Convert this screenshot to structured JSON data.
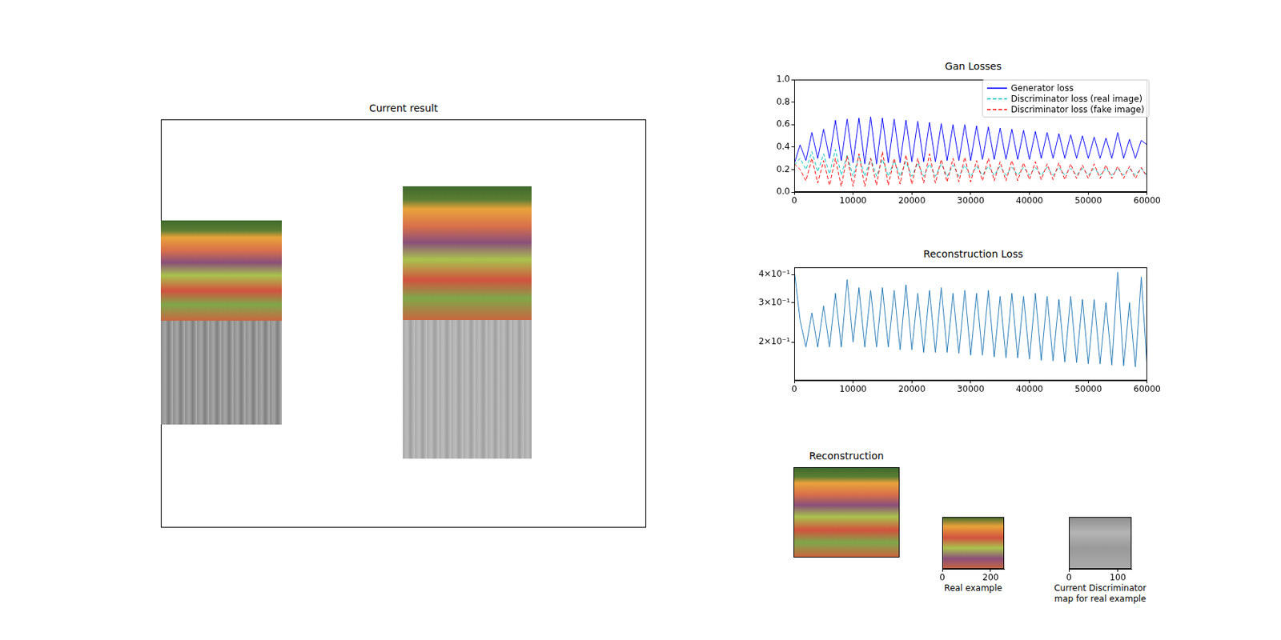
{
  "chart_data": [
    {
      "type": "image",
      "title": "Current result"
    },
    {
      "type": "line",
      "title": "Gan Losses",
      "grid": false,
      "legend": "upper right",
      "x": [
        0,
        1000,
        2000,
        3000,
        4000,
        5000,
        6000,
        7000,
        8000,
        9000,
        10000,
        11000,
        12000,
        13000,
        14000,
        15000,
        16000,
        17000,
        18000,
        19000,
        20000,
        21000,
        22000,
        23000,
        24000,
        25000,
        26000,
        27000,
        28000,
        29000,
        30000,
        31000,
        32000,
        33000,
        34000,
        35000,
        36000,
        37000,
        38000,
        39000,
        40000,
        41000,
        42000,
        43000,
        44000,
        45000,
        46000,
        47000,
        48000,
        49000,
        50000,
        51000,
        52000,
        53000,
        54000,
        55000,
        56000,
        57000,
        58000,
        59000,
        60000
      ],
      "xlim": [
        0,
        60000
      ],
      "xticks": [
        0,
        10000,
        20000,
        30000,
        40000,
        50000,
        60000
      ],
      "ylim": [
        0,
        1
      ],
      "yticks": [
        {
          "value": 0,
          "label": "0.0"
        },
        0.2,
        0.4,
        0.6,
        0.8,
        {
          "value": 1,
          "label": "1.0"
        }
      ],
      "series": [
        {
          "name": "Generator loss",
          "color": "#0000ff",
          "line_style": "solid",
          "values": [
            0.25,
            0.42,
            0.28,
            0.53,
            0.3,
            0.56,
            0.3,
            0.64,
            0.28,
            0.65,
            0.26,
            0.66,
            0.25,
            0.67,
            0.25,
            0.66,
            0.26,
            0.65,
            0.26,
            0.64,
            0.27,
            0.63,
            0.27,
            0.62,
            0.27,
            0.61,
            0.28,
            0.6,
            0.28,
            0.6,
            0.28,
            0.59,
            0.29,
            0.58,
            0.29,
            0.57,
            0.29,
            0.56,
            0.29,
            0.55,
            0.29,
            0.54,
            0.3,
            0.53,
            0.3,
            0.52,
            0.3,
            0.51,
            0.3,
            0.5,
            0.3,
            0.49,
            0.3,
            0.48,
            0.3,
            0.53,
            0.3,
            0.47,
            0.3,
            0.46,
            0.42
          ]
        },
        {
          "name": "Discriminator loss (real image)",
          "color": "#00bfbf",
          "line_style": "dashed",
          "values": [
            0.24,
            0.3,
            0.2,
            0.36,
            0.18,
            0.34,
            0.16,
            0.38,
            0.15,
            0.33,
            0.14,
            0.32,
            0.14,
            0.3,
            0.14,
            0.29,
            0.14,
            0.28,
            0.14,
            0.27,
            0.14,
            0.26,
            0.14,
            0.25,
            0.14,
            0.25,
            0.14,
            0.24,
            0.14,
            0.24,
            0.14,
            0.23,
            0.15,
            0.23,
            0.15,
            0.23,
            0.15,
            0.22,
            0.15,
            0.22,
            0.15,
            0.22,
            0.15,
            0.22,
            0.15,
            0.22,
            0.15,
            0.21,
            0.15,
            0.21,
            0.15,
            0.21,
            0.15,
            0.21,
            0.15,
            0.21,
            0.15,
            0.21,
            0.15,
            0.21,
            0.15
          ]
        },
        {
          "name": "Discriminator loss (fake image)",
          "color": "#ff0000",
          "line_style": "dashed",
          "values": [
            0.25,
            0.2,
            0.1,
            0.3,
            0.08,
            0.28,
            0.06,
            0.3,
            0.05,
            0.32,
            0.05,
            0.34,
            0.05,
            0.3,
            0.06,
            0.36,
            0.06,
            0.3,
            0.07,
            0.33,
            0.07,
            0.3,
            0.08,
            0.34,
            0.08,
            0.29,
            0.09,
            0.3,
            0.09,
            0.31,
            0.09,
            0.28,
            0.1,
            0.3,
            0.1,
            0.27,
            0.1,
            0.28,
            0.1,
            0.26,
            0.11,
            0.27,
            0.11,
            0.25,
            0.11,
            0.26,
            0.11,
            0.25,
            0.12,
            0.24,
            0.12,
            0.25,
            0.12,
            0.24,
            0.12,
            0.23,
            0.12,
            0.23,
            0.12,
            0.22,
            0.13
          ]
        }
      ]
    },
    {
      "type": "line",
      "title": "Reconstruction Loss",
      "grid": false,
      "log": "y",
      "x": [
        0,
        1000,
        2000,
        3000,
        4000,
        5000,
        6000,
        7000,
        8000,
        9000,
        10000,
        11000,
        12000,
        13000,
        14000,
        15000,
        16000,
        17000,
        18000,
        19000,
        20000,
        21000,
        22000,
        23000,
        24000,
        25000,
        26000,
        27000,
        28000,
        29000,
        30000,
        31000,
        32000,
        33000,
        34000,
        35000,
        36000,
        37000,
        38000,
        39000,
        40000,
        41000,
        42000,
        43000,
        44000,
        45000,
        46000,
        47000,
        48000,
        49000,
        50000,
        51000,
        52000,
        53000,
        54000,
        55000,
        56000,
        57000,
        58000,
        59000,
        60000
      ],
      "xlim": [
        0,
        60000
      ],
      "xticks": [
        0,
        10000,
        20000,
        30000,
        40000,
        50000,
        60000
      ],
      "ylim": [
        0.135,
        0.43
      ],
      "yticks": [
        {
          "value": 0.2,
          "label": "2×10⁻¹"
        },
        {
          "value": 0.3,
          "label": "3×10⁻¹"
        },
        {
          "value": 0.4,
          "label": "4×10⁻¹"
        }
      ],
      "series": [
        {
          "color": "#1f77b4",
          "line_style": "solid",
          "values": [
            0.42,
            0.25,
            0.19,
            0.27,
            0.19,
            0.29,
            0.19,
            0.33,
            0.19,
            0.38,
            0.2,
            0.35,
            0.19,
            0.34,
            0.19,
            0.35,
            0.19,
            0.34,
            0.185,
            0.36,
            0.185,
            0.33,
            0.18,
            0.34,
            0.18,
            0.35,
            0.18,
            0.33,
            0.178,
            0.34,
            0.175,
            0.33,
            0.175,
            0.34,
            0.172,
            0.32,
            0.17,
            0.33,
            0.17,
            0.32,
            0.168,
            0.33,
            0.166,
            0.32,
            0.165,
            0.31,
            0.163,
            0.32,
            0.162,
            0.31,
            0.16,
            0.31,
            0.16,
            0.3,
            0.158,
            0.41,
            0.157,
            0.3,
            0.155,
            0.39,
            0.155
          ]
        }
      ]
    },
    {
      "type": "image",
      "title": "Reconstruction"
    },
    {
      "type": "image",
      "xlabel": "Real example",
      "xlim": [
        0,
        256
      ],
      "xticks": [
        0,
        200
      ],
      "tick_labels": "x"
    },
    {
      "type": "image",
      "xlabel": "Current Discriminator\nmap for real example",
      "xlim": [
        0,
        128
      ],
      "xticks": [
        0,
        100
      ],
      "tick_labels": "x"
    }
  ]
}
